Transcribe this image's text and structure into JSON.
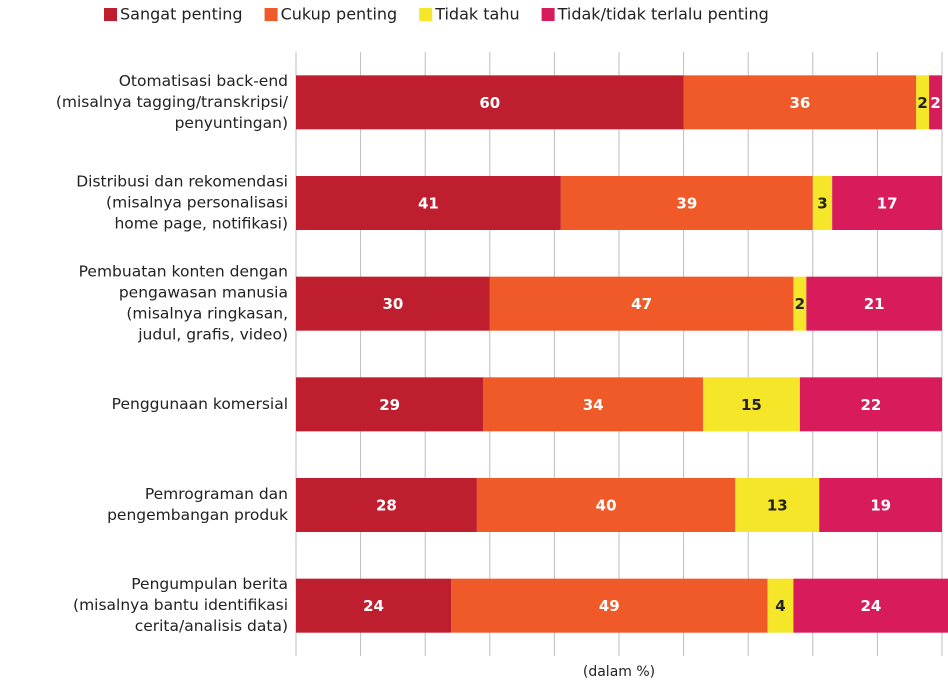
{
  "chart_data": {
    "type": "stacked-bar-horizontal",
    "categories": [
      [
        "Otomatisasi back-end",
        "(misalnya tagging/transkripsi/",
        "penyuntingan)"
      ],
      [
        "Distribusi dan rekomendasi",
        "(misalnya personalisasi",
        "home page, notifikasi)"
      ],
      [
        "Pembuatan konten dengan",
        "pengawasan manusia",
        "(misalnya ringkasan,",
        "judul, grafis, video)"
      ],
      [
        "Penggunaan komersial"
      ],
      [
        "Pemrograman dan",
        "pengembangan produk"
      ],
      [
        "Pengumpulan berita",
        "(misalnya bantu identifikasi",
        "cerita/analisis data)"
      ]
    ],
    "series": [
      {
        "name": "Sangat penting",
        "color": "#be1e2d",
        "values": [
          60,
          41,
          30,
          29,
          28,
          24
        ]
      },
      {
        "name": "Cukup penting",
        "color": "#f05a28",
        "values": [
          36,
          39,
          47,
          34,
          40,
          49
        ]
      },
      {
        "name": "Tidak tahu",
        "color": "#f5e62a",
        "values": [
          2,
          3,
          2,
          15,
          13,
          4
        ]
      },
      {
        "name": "Tidak/tidak terlalu penting",
        "color": "#d81b5b",
        "values": [
          2,
          17,
          21,
          22,
          19,
          24
        ]
      }
    ],
    "xlabel": "(dalam %)",
    "xlim": [
      0,
      100
    ],
    "xticks": [
      0,
      10,
      20,
      30,
      40,
      50,
      60,
      70,
      80,
      90,
      100
    ],
    "grid": true,
    "legend": "top"
  }
}
